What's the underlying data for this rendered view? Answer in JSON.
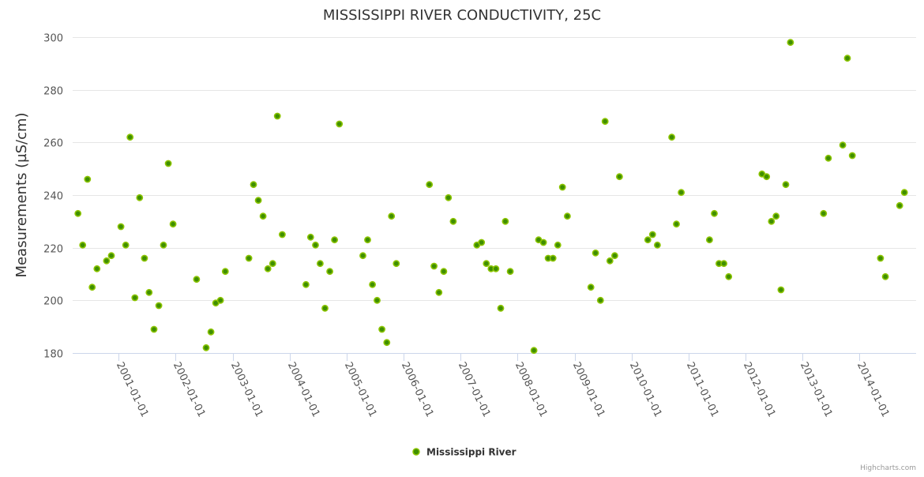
{
  "chart_data": {
    "type": "scatter",
    "title": "MISSISSIPPI RIVER CONDUCTIVITY, 25C",
    "xlabel": "",
    "ylabel": "Measurements (µS/cm)",
    "ylim": [
      180,
      300
    ],
    "yticks": [
      180,
      200,
      220,
      240,
      260,
      280,
      300
    ],
    "xticks": [
      "2001-01-01",
      "2002-01-01",
      "2003-01-01",
      "2004-01-01",
      "2005-01-01",
      "2006-01-01",
      "2007-01-01",
      "2008-01-01",
      "2009-01-01",
      "2010-01-01",
      "2011-01-01",
      "2012-01-01",
      "2013-01-01",
      "2014-01-01"
    ],
    "grid": true,
    "legend": "bottom-center",
    "colors": {
      "marker_fill": "#3f8f00",
      "marker_stroke": "#8cc400",
      "grid": "#e6e6e6",
      "axis": "#ccd6eb"
    },
    "series": [
      {
        "name": "Mississippi River",
        "points": [
          [
            "2000-04",
            233
          ],
          [
            "2000-05",
            221
          ],
          [
            "2000-06",
            246
          ],
          [
            "2000-07",
            205
          ],
          [
            "2000-08",
            212
          ],
          [
            "2000-10",
            215
          ],
          [
            "2000-11",
            217
          ],
          [
            "2001-01",
            228
          ],
          [
            "2001-02",
            221
          ],
          [
            "2001-03",
            262
          ],
          [
            "2001-04",
            201
          ],
          [
            "2001-05",
            239
          ],
          [
            "2001-06",
            216
          ],
          [
            "2001-07",
            203
          ],
          [
            "2001-08",
            189
          ],
          [
            "2001-09",
            198
          ],
          [
            "2001-10",
            221
          ],
          [
            "2001-11",
            252
          ],
          [
            "2001-12",
            229
          ],
          [
            "2002-05",
            208
          ],
          [
            "2002-07",
            182
          ],
          [
            "2002-08",
            188
          ],
          [
            "2002-09",
            199
          ],
          [
            "2002-10",
            200
          ],
          [
            "2002-11",
            211
          ],
          [
            "2003-04",
            216
          ],
          [
            "2003-05",
            244
          ],
          [
            "2003-06",
            238
          ],
          [
            "2003-07",
            232
          ],
          [
            "2003-08",
            212
          ],
          [
            "2003-09",
            214
          ],
          [
            "2003-10",
            270
          ],
          [
            "2003-11",
            225
          ],
          [
            "2004-04",
            206
          ],
          [
            "2004-05",
            224
          ],
          [
            "2004-06",
            221
          ],
          [
            "2004-07",
            214
          ],
          [
            "2004-08",
            197
          ],
          [
            "2004-09",
            211
          ],
          [
            "2004-10",
            223
          ],
          [
            "2004-11",
            267
          ],
          [
            "2005-04",
            217
          ],
          [
            "2005-05",
            223
          ],
          [
            "2005-06",
            206
          ],
          [
            "2005-07",
            200
          ],
          [
            "2005-08",
            189
          ],
          [
            "2005-09",
            184
          ],
          [
            "2005-10",
            232
          ],
          [
            "2005-11",
            214
          ],
          [
            "2006-06",
            244
          ],
          [
            "2006-07",
            213
          ],
          [
            "2006-08",
            203
          ],
          [
            "2006-09",
            211
          ],
          [
            "2006-10",
            239
          ],
          [
            "2006-11",
            230
          ],
          [
            "2007-04",
            221
          ],
          [
            "2007-05",
            222
          ],
          [
            "2007-06",
            214
          ],
          [
            "2007-07",
            212
          ],
          [
            "2007-08",
            212
          ],
          [
            "2007-09",
            197
          ],
          [
            "2007-10",
            230
          ],
          [
            "2007-11",
            211
          ],
          [
            "2008-04",
            181
          ],
          [
            "2008-05",
            223
          ],
          [
            "2008-06",
            222
          ],
          [
            "2008-07",
            216
          ],
          [
            "2008-08",
            216
          ],
          [
            "2008-09",
            221
          ],
          [
            "2008-10",
            243
          ],
          [
            "2008-11",
            232
          ],
          [
            "2009-04",
            205
          ],
          [
            "2009-05",
            218
          ],
          [
            "2009-06",
            200
          ],
          [
            "2009-07",
            268
          ],
          [
            "2009-08",
            215
          ],
          [
            "2009-09",
            217
          ],
          [
            "2009-10",
            247
          ],
          [
            "2010-04",
            223
          ],
          [
            "2010-05",
            225
          ],
          [
            "2010-06",
            221
          ],
          [
            "2010-09",
            262
          ],
          [
            "2010-10",
            229
          ],
          [
            "2010-11",
            241
          ],
          [
            "2011-05",
            223
          ],
          [
            "2011-06",
            233
          ],
          [
            "2011-07",
            214
          ],
          [
            "2011-08",
            214
          ],
          [
            "2011-09",
            209
          ],
          [
            "2012-04",
            248
          ],
          [
            "2012-05",
            247
          ],
          [
            "2012-06",
            230
          ],
          [
            "2012-07",
            232
          ],
          [
            "2012-08",
            204
          ],
          [
            "2012-09",
            244
          ],
          [
            "2012-10",
            298
          ],
          [
            "2013-05",
            233
          ],
          [
            "2013-06",
            254
          ],
          [
            "2013-09",
            259
          ],
          [
            "2013-10",
            292
          ],
          [
            "2013-11",
            255
          ],
          [
            "2014-05",
            216
          ],
          [
            "2014-06",
            209
          ],
          [
            "2014-09",
            236
          ],
          [
            "2014-10",
            241
          ]
        ]
      }
    ]
  },
  "credits": "Highcharts.com"
}
